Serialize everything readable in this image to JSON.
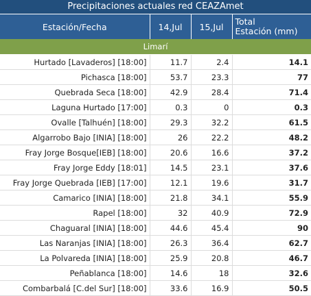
{
  "title": "Precipitaciones actuales red CEAZAmet",
  "headers": {
    "station": "Estación/Fecha",
    "day1": "14,Jul",
    "day2": "15,Jul",
    "total_line1": "Total",
    "total_line2": "Estación (mm)"
  },
  "group": "Limarí",
  "rows": [
    {
      "station": "Hurtado [Lavaderos] [18:00]",
      "d1": "11.7",
      "d2": "2.4",
      "total": "14.1"
    },
    {
      "station": "Pichasca [18:00]",
      "d1": "53.7",
      "d2": "23.3",
      "total": "77"
    },
    {
      "station": "Quebrada Seca [18:00]",
      "d1": "42.9",
      "d2": "28.4",
      "total": "71.4"
    },
    {
      "station": "Laguna Hurtado [17:00]",
      "d1": "0.3",
      "d2": "0",
      "total": "0.3"
    },
    {
      "station": "Ovalle [Talhuén] [18:00]",
      "d1": "29.3",
      "d2": "32.2",
      "total": "61.5"
    },
    {
      "station": "Algarrobo Bajo [INIA] [18:00]",
      "d1": "26",
      "d2": "22.2",
      "total": "48.2"
    },
    {
      "station": "Fray Jorge Bosque[IEB] [18:00]",
      "d1": "20.6",
      "d2": "16.6",
      "total": "37.2"
    },
    {
      "station": "Fray Jorge Eddy [18:01]",
      "d1": "14.5",
      "d2": "23.1",
      "total": "37.6"
    },
    {
      "station": "Fray Jorge Quebrada [IEB] [17:00]",
      "d1": "12.1",
      "d2": "19.6",
      "total": "31.7"
    },
    {
      "station": "Camarico [INIA] [18:00]",
      "d1": "21.8",
      "d2": "34.1",
      "total": "55.9"
    },
    {
      "station": "Rapel [18:00]",
      "d1": "32",
      "d2": "40.9",
      "total": "72.9"
    },
    {
      "station": "Chaguaral [INIA] [18:00]",
      "d1": "44.6",
      "d2": "45.4",
      "total": "90"
    },
    {
      "station": "Las Naranjas [INIA] [18:00]",
      "d1": "26.3",
      "d2": "36.4",
      "total": "62.7"
    },
    {
      "station": "La Polvareda [INIA] [18:00]",
      "d1": "25.9",
      "d2": "20.8",
      "total": "46.7"
    },
    {
      "station": "Peñablanca [18:00]",
      "d1": "14.6",
      "d2": "18",
      "total": "32.6"
    },
    {
      "station": "Combarbalá [C.del Sur] [18:00]",
      "d1": "33.6",
      "d2": "16.9",
      "total": "50.5"
    }
  ]
}
